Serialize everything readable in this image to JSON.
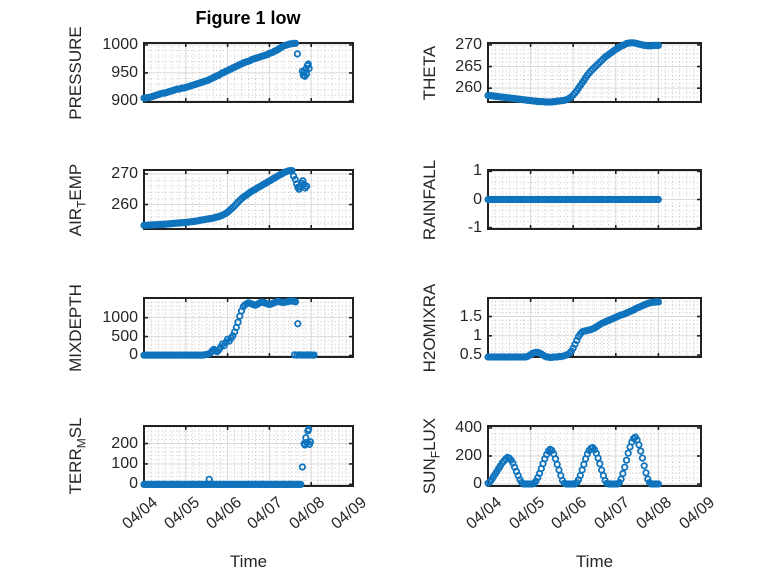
{
  "figure": {
    "title": "Figure 1 low",
    "xlabel": "Time",
    "x_tick_labels": [
      "04/04",
      "04/05",
      "04/06",
      "04/07",
      "04/08",
      "04/09"
    ],
    "grid": true,
    "minor_grid": true,
    "layout": "4x2 subplots"
  },
  "style": {
    "marker_color": "#0f73bd",
    "axis_color": "#212121",
    "major_grid_color": "#d9d9d9",
    "minor_grid_color": "#c5c5c5",
    "text_color": "#262626",
    "background": "#ffffff"
  },
  "chart_data": [
    {
      "id": "pressure",
      "type": "scatter",
      "ylabel": "PRESSURE",
      "ylabel_parts": [
        {
          "t": "PRESSURE",
          "sub": false
        }
      ],
      "yticks": [
        900,
        950,
        1000
      ],
      "ylim": [
        898,
        1003.5
      ],
      "xlim_days": [
        0,
        5
      ],
      "series": {
        "t0_hours": 0,
        "dt_hours": 1,
        "y": [
          905,
          905,
          906,
          906,
          907,
          908,
          909,
          910,
          911,
          912,
          913,
          914,
          914,
          915,
          916,
          917,
          918,
          919,
          920,
          921,
          921,
          922,
          923,
          923,
          924,
          925,
          926,
          927,
          928,
          929,
          930,
          931,
          932,
          933,
          934,
          935,
          936,
          937,
          939,
          940,
          942,
          943,
          945,
          946,
          948,
          950,
          951,
          953,
          954,
          956,
          957,
          959,
          960,
          962,
          963,
          965,
          966,
          968,
          969,
          970,
          971,
          972,
          974,
          975,
          976,
          977,
          978,
          979,
          980,
          981,
          982,
          983,
          985,
          986,
          987,
          989,
          990,
          992,
          994,
          996,
          998,
          999,
          1000,
          1001,
          1002,
          1002,
          1003,
          1003
        ]
      },
      "extra_points": [
        [
          3.67,
          984
        ],
        [
          3.79,
          953
        ],
        [
          3.81,
          946
        ],
        [
          3.83,
          951
        ],
        [
          3.85,
          944
        ],
        [
          3.87,
          957
        ],
        [
          3.89,
          948
        ],
        [
          3.91,
          963
        ],
        [
          3.93,
          966
        ],
        [
          3.95,
          958
        ]
      ]
    },
    {
      "id": "theta",
      "type": "scatter",
      "ylabel": "THETA",
      "ylabel_parts": [
        {
          "t": "THETA",
          "sub": false
        }
      ],
      "yticks": [
        260,
        265,
        270
      ],
      "ylim": [
        256.8,
        270.45
      ],
      "xlim_days": [
        0,
        5
      ],
      "series": {
        "t0_hours": 0,
        "dt_hours": 1,
        "y": [
          258.3,
          258.3,
          258.2,
          258.2,
          258.1,
          258.1,
          258.0,
          258.0,
          257.9,
          257.9,
          257.8,
          257.8,
          257.7,
          257.7,
          257.6,
          257.6,
          257.5,
          257.5,
          257.4,
          257.4,
          257.3,
          257.3,
          257.2,
          257.2,
          257.1,
          257.1,
          257.0,
          257.0,
          256.9,
          256.9,
          256.9,
          256.9,
          256.8,
          256.8,
          256.8,
          256.8,
          256.8,
          256.9,
          256.9,
          257.0,
          257.0,
          257.1,
          257.1,
          257.2,
          257.3,
          257.5,
          257.7,
          258.0,
          258.4,
          258.9,
          259.4,
          260.0,
          260.6,
          261.2,
          261.8,
          262.4,
          263.0,
          263.5,
          264.0,
          264.4,
          264.8,
          265.2,
          265.6,
          266.0,
          266.4,
          266.8,
          267.2,
          267.5,
          267.8,
          268.1,
          268.4,
          268.7,
          269.0,
          269.2,
          269.5,
          269.7,
          269.9,
          270.1,
          270.3,
          270.4,
          270.5,
          270.5,
          270.5,
          270.4,
          270.3,
          270.2,
          270.1,
          270.0,
          269.9,
          269.9,
          269.8,
          269.8,
          269.8,
          269.9,
          269.9,
          269.9,
          269.9
        ]
      },
      "extra_points": []
    },
    {
      "id": "airtemp",
      "type": "scatter",
      "ylabel": "AIR_TEMP",
      "ylabel_parts": [
        {
          "t": "AIR",
          "sub": false
        },
        {
          "t": "T",
          "sub": true
        },
        {
          "t": "EMP",
          "sub": false
        }
      ],
      "yticks": [
        260,
        270
      ],
      "ylim": [
        252,
        271.3
      ],
      "xlim_days": [
        0,
        5
      ],
      "series": {
        "t0_hours": 0,
        "dt_hours": 1,
        "y": [
          253.2,
          253.2,
          253.2,
          253.3,
          253.3,
          253.3,
          253.4,
          253.4,
          253.4,
          253.5,
          253.5,
          253.5,
          253.6,
          253.6,
          253.7,
          253.7,
          253.8,
          253.8,
          253.9,
          253.9,
          254.0,
          254.0,
          254.1,
          254.1,
          254.2,
          254.2,
          254.3,
          254.4,
          254.4,
          254.5,
          254.6,
          254.7,
          254.8,
          254.9,
          255.0,
          255.1,
          255.2,
          255.3,
          255.4,
          255.5,
          255.6,
          255.8,
          255.9,
          256.1,
          256.3,
          256.5,
          256.8,
          257.1,
          257.5,
          258.0,
          258.5,
          259.0,
          259.6,
          260.2,
          260.8,
          261.4,
          261.9,
          262.4,
          262.8,
          263.2,
          263.6,
          264.0,
          264.4,
          264.7,
          265.0,
          265.4,
          265.7,
          266.0,
          266.4,
          266.7,
          267.0,
          267.4,
          267.7,
          268.0,
          268.4,
          268.7,
          269.0,
          269.4,
          269.7,
          270.0,
          270.3,
          270.6,
          270.8,
          271.0,
          271.1,
          271.1
        ]
      },
      "extra_points": [
        [
          3.58,
          269.3
        ],
        [
          3.62,
          268.2
        ],
        [
          3.65,
          266.8
        ],
        [
          3.68,
          265.6
        ],
        [
          3.71,
          265.0
        ],
        [
          3.74,
          265.8
        ],
        [
          3.77,
          267.0
        ],
        [
          3.8,
          267.8
        ],
        [
          3.83,
          266.6
        ],
        [
          3.86,
          265.4
        ],
        [
          3.89,
          266.0
        ]
      ]
    },
    {
      "id": "rainfall",
      "type": "scatter",
      "ylabel": "RAINFALL",
      "ylabel_parts": [
        {
          "t": "RAINFALL",
          "sub": false
        }
      ],
      "yticks": [
        -1,
        0,
        1
      ],
      "ylim": [
        -1.05,
        1.05
      ],
      "xlim_days": [
        0,
        5
      ],
      "series": {
        "t0_hours": 0,
        "dt_hours": 1,
        "n": 97,
        "const_y": 0
      },
      "extra_points": []
    },
    {
      "id": "mixdepth",
      "type": "scatter",
      "ylabel": "MIXDEPTH",
      "ylabel_parts": [
        {
          "t": "MIXDEPTH",
          "sub": false
        }
      ],
      "yticks": [
        0,
        500,
        1000
      ],
      "ylim": [
        -40,
        1520
      ],
      "xlim_days": [
        0,
        5
      ],
      "series": {
        "t0_hours": 0,
        "dt_hours": 1,
        "y": [
          8,
          10,
          8,
          10,
          8,
          10,
          8,
          10,
          8,
          10,
          8,
          10,
          8,
          10,
          8,
          10,
          8,
          10,
          8,
          10,
          8,
          10,
          8,
          10,
          8,
          10,
          8,
          10,
          8,
          10,
          8,
          10,
          8,
          10,
          8,
          20,
          30,
          40,
          60,
          110,
          160,
          130,
          100,
          150,
          220,
          300,
          260,
          350,
          430,
          380,
          460,
          520,
          620,
          740,
          880,
          1040,
          1180,
          1290,
          1340,
          1370,
          1390,
          1380,
          1360,
          1340,
          1330,
          1350,
          1380,
          1400,
          1410,
          1400,
          1380,
          1360,
          1350,
          1360,
          1380,
          1400,
          1420,
          1430,
          1420,
          1410,
          1400,
          1410,
          1420,
          1430,
          1440,
          1440,
          1430,
          1420
        ]
      },
      "extra_points": [
        [
          3.68,
          840
        ],
        [
          3.6,
          15
        ],
        [
          3.66,
          10
        ],
        [
          3.71,
          18
        ],
        [
          3.75,
          12
        ],
        [
          3.79,
          8
        ],
        [
          3.83,
          14
        ],
        [
          3.87,
          10
        ],
        [
          3.91,
          16
        ],
        [
          3.95,
          10
        ],
        [
          3.99,
          12
        ],
        [
          4.03,
          8
        ],
        [
          4.07,
          10
        ]
      ]
    },
    {
      "id": "h2omixra",
      "type": "scatter",
      "ylabel": "H2OMIXRA",
      "ylabel_parts": [
        {
          "t": "H2OMIXRA",
          "sub": false
        }
      ],
      "yticks": [
        0.5,
        1,
        1.5
      ],
      "ylim": [
        0.45,
        1.98
      ],
      "xlim_days": [
        0,
        5
      ],
      "series": {
        "t0_hours": 0,
        "dt_hours": 1,
        "y": [
          0.45,
          0.45,
          0.45,
          0.45,
          0.45,
          0.45,
          0.45,
          0.45,
          0.45,
          0.45,
          0.45,
          0.45,
          0.45,
          0.45,
          0.45,
          0.45,
          0.45,
          0.45,
          0.45,
          0.45,
          0.45,
          0.45,
          0.46,
          0.48,
          0.51,
          0.54,
          0.56,
          0.57,
          0.57,
          0.55,
          0.53,
          0.5,
          0.47,
          0.45,
          0.45,
          0.44,
          0.44,
          0.45,
          0.45,
          0.45,
          0.46,
          0.46,
          0.47,
          0.48,
          0.5,
          0.52,
          0.55,
          0.6,
          0.68,
          0.78,
          0.88,
          0.98,
          1.05,
          1.1,
          1.12,
          1.13,
          1.14,
          1.15,
          1.16,
          1.18,
          1.2,
          1.23,
          1.26,
          1.29,
          1.32,
          1.34,
          1.36,
          1.38,
          1.4,
          1.42,
          1.44,
          1.46,
          1.48,
          1.5,
          1.52,
          1.54,
          1.55,
          1.57,
          1.59,
          1.61,
          1.63,
          1.65,
          1.67,
          1.7,
          1.72,
          1.74,
          1.76,
          1.78,
          1.8,
          1.82,
          1.84,
          1.85,
          1.86,
          1.87,
          1.87,
          1.88,
          1.88
        ]
      },
      "extra_points": []
    },
    {
      "id": "terr_msl",
      "type": "scatter",
      "ylabel": "TERR_MSL",
      "ylabel_parts": [
        {
          "t": "TERR",
          "sub": false
        },
        {
          "t": "M",
          "sub": true
        },
        {
          "t": "SL",
          "sub": false
        }
      ],
      "yticks": [
        0,
        100,
        200
      ],
      "ylim": [
        -8,
        286
      ],
      "xlim_days": [
        0,
        5
      ],
      "series": {
        "t0_hours": 0,
        "dt_hours": 1,
        "n": 91,
        "const_y": 0
      },
      "extra_points": [
        [
          1.56,
          25
        ],
        [
          3.79,
          85
        ],
        [
          3.83,
          200
        ],
        [
          3.85,
          193
        ],
        [
          3.87,
          228
        ],
        [
          3.9,
          205
        ],
        [
          3.92,
          262
        ],
        [
          3.94,
          270
        ],
        [
          3.96,
          196
        ],
        [
          3.98,
          208
        ]
      ]
    },
    {
      "id": "sun_flux",
      "type": "scatter",
      "ylabel": "SUN_FLUX",
      "ylabel_parts": [
        {
          "t": "SUN",
          "sub": false
        },
        {
          "t": "F",
          "sub": true
        },
        {
          "t": "LUX",
          "sub": false
        }
      ],
      "yticks": [
        0,
        200,
        400
      ],
      "ylim": [
        -14,
        414
      ],
      "xlim_days": [
        0,
        5
      ],
      "series": {
        "t0_hours": 0,
        "dt_hours": 1,
        "y": [
          5,
          15,
          30,
          50,
          70,
          90,
          110,
          130,
          150,
          165,
          180,
          190,
          185,
          170,
          150,
          120,
          90,
          60,
          30,
          10,
          0,
          0,
          0,
          0,
          0,
          0,
          5,
          20,
          45,
          75,
          110,
          145,
          180,
          210,
          235,
          248,
          240,
          215,
          180,
          140,
          100,
          60,
          25,
          5,
          0,
          0,
          0,
          0,
          0,
          0,
          10,
          30,
          60,
          100,
          140,
          180,
          215,
          240,
          255,
          260,
          245,
          220,
          185,
          145,
          100,
          60,
          25,
          5,
          0,
          0,
          0,
          0,
          0,
          0,
          10,
          35,
          75,
          120,
          170,
          220,
          265,
          300,
          325,
          335,
          315,
          280,
          235,
          185,
          130,
          80,
          35,
          10,
          0,
          0,
          0,
          0,
          0
        ]
      },
      "extra_points": []
    }
  ]
}
